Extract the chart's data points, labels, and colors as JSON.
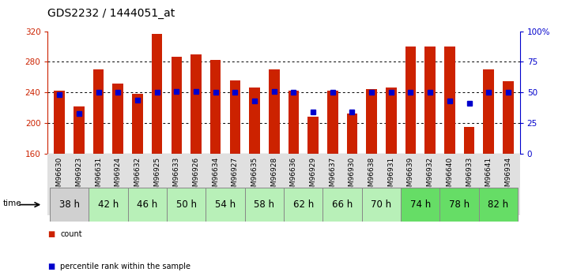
{
  "title": "GDS2232 / 1444051_at",
  "samples": [
    "GSM96630",
    "GSM96923",
    "GSM96631",
    "GSM96924",
    "GSM96632",
    "GSM96925",
    "GSM96633",
    "GSM96926",
    "GSM96634",
    "GSM96927",
    "GSM96635",
    "GSM96928",
    "GSM96636",
    "GSM96929",
    "GSM96637",
    "GSM96930",
    "GSM96638",
    "GSM96931",
    "GSM96639",
    "GSM96932",
    "GSM96640",
    "GSM96933",
    "GSM96641",
    "GSM96934"
  ],
  "counts": [
    242,
    222,
    270,
    252,
    238,
    317,
    287,
    290,
    283,
    256,
    246,
    270,
    242,
    208,
    242,
    212,
    244,
    246,
    300,
    300,
    300,
    195,
    270,
    255
  ],
  "percentile_ranks": [
    48,
    33,
    50,
    50,
    44,
    50,
    51,
    51,
    50,
    50,
    43,
    51,
    50,
    34,
    50,
    34,
    50,
    50,
    50,
    50,
    43,
    41,
    50,
    50
  ],
  "time_groups": [
    {
      "label": "38 h",
      "start": 0,
      "end": 2,
      "color": "#d0d0d0"
    },
    {
      "label": "42 h",
      "start": 2,
      "end": 4,
      "color": "#b8f0b8"
    },
    {
      "label": "46 h",
      "start": 4,
      "end": 6,
      "color": "#b8f0b8"
    },
    {
      "label": "50 h",
      "start": 6,
      "end": 8,
      "color": "#b8f0b8"
    },
    {
      "label": "54 h",
      "start": 8,
      "end": 10,
      "color": "#b8f0b8"
    },
    {
      "label": "58 h",
      "start": 10,
      "end": 12,
      "color": "#b8f0b8"
    },
    {
      "label": "62 h",
      "start": 12,
      "end": 14,
      "color": "#b8f0b8"
    },
    {
      "label": "66 h",
      "start": 14,
      "end": 16,
      "color": "#b8f0b8"
    },
    {
      "label": "70 h",
      "start": 16,
      "end": 18,
      "color": "#b8f0b8"
    },
    {
      "label": "74 h",
      "start": 18,
      "end": 20,
      "color": "#66dd66"
    },
    {
      "label": "78 h",
      "start": 20,
      "end": 22,
      "color": "#66dd66"
    },
    {
      "label": "82 h",
      "start": 22,
      "end": 24,
      "color": "#66dd66"
    }
  ],
  "ymin": 160,
  "ymax": 320,
  "yticks": [
    160,
    200,
    240,
    280,
    320
  ],
  "right_yticks": [
    0,
    25,
    50,
    75,
    100
  ],
  "bar_color": "#cc2200",
  "dot_color": "#0000cc",
  "bg_color": "#ffffff",
  "title_fontsize": 10,
  "tick_label_fontsize": 6.5,
  "time_label_fontsize": 8.5,
  "axis_label_fontsize": 7.5
}
